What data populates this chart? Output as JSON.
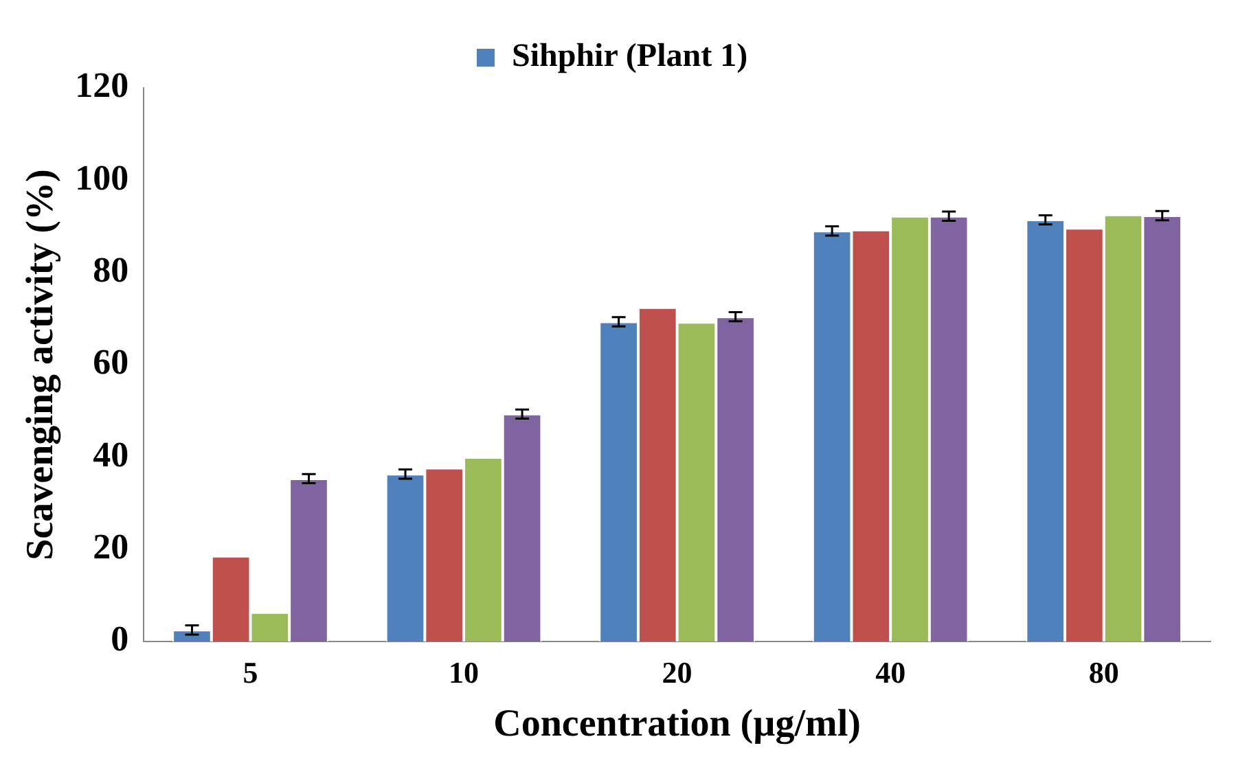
{
  "chart_data": {
    "type": "bar",
    "xlabel": "Concentration (µg/ml)",
    "ylabel": "Scavenging activity (%)",
    "categories": [
      "5",
      "10",
      "20",
      "40",
      "80"
    ],
    "series": [
      {
        "name": "Sihphir (Plant 1)",
        "color": "#4f81bd",
        "values": [
          2.5,
          36.3,
          69.3,
          89,
          91.4
        ],
        "errors": [
          1,
          1,
          1,
          1,
          1
        ]
      },
      {
        "color": "#c0504d",
        "values": [
          18.5,
          37.6,
          72.4,
          89.2,
          89.6
        ]
      },
      {
        "color": "#9bbb59",
        "values": [
          6.3,
          39.9,
          69.2,
          92.2,
          92.5
        ]
      },
      {
        "color": "#8064a2",
        "values": [
          35.3,
          49.3,
          70.4,
          92.2,
          92.3
        ],
        "errors": [
          1,
          1,
          1,
          1,
          1
        ]
      }
    ],
    "ylim": [
      0,
      120
    ],
    "yticks": [
      0,
      20,
      40,
      60,
      80,
      100,
      120
    ],
    "grid": false,
    "legend": "top"
  }
}
